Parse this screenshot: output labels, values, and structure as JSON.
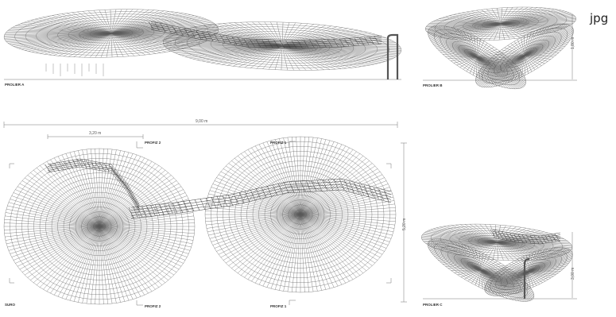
{
  "format_tag": "jpg",
  "labels": {
    "elev_a": "PROLIER A",
    "elev_b": "PROLIER B",
    "elev_c": "PROLIER C",
    "plan": "SURO",
    "prof_2_top": "PROFIZ 2",
    "prof_1_top": "PROFIZ 1",
    "prof_2_bottom": "PROFIZ 2",
    "prof_1_bottom": "PROFIZ 1"
  },
  "dimensions": {
    "overall_width": "9,00 m",
    "partial_width": "3,20 m",
    "plan_height": "5,20 m",
    "elev_b_height": "1,80 m",
    "elev_c_height": "3,00 m"
  },
  "colors": {
    "line": "#5a5a5a",
    "dark": "#333333",
    "dim": "#777777"
  }
}
